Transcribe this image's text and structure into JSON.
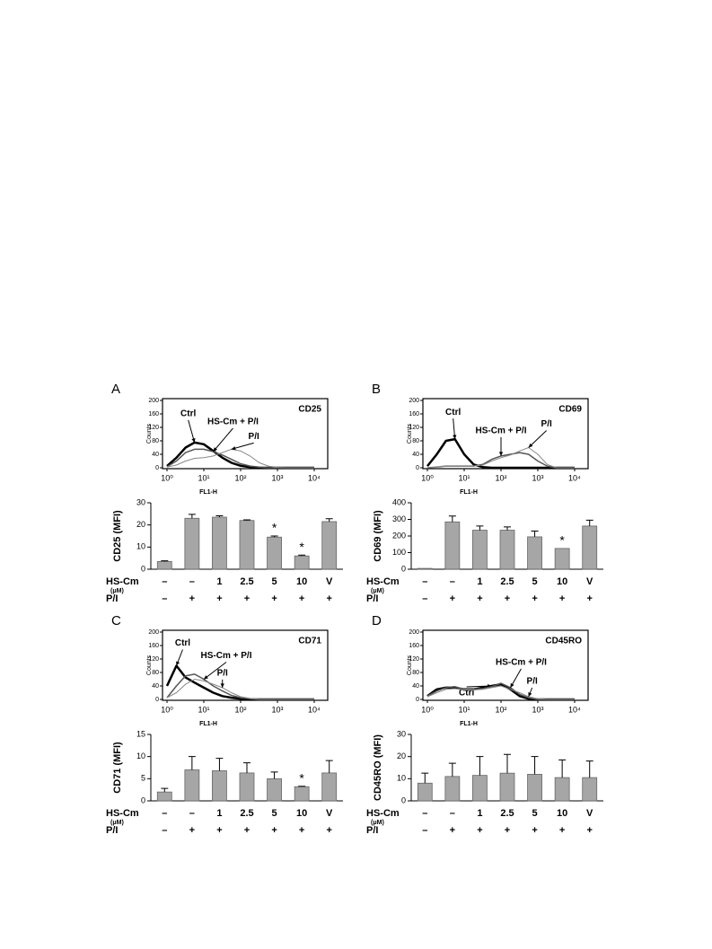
{
  "chart_data": [
    {
      "type": "line",
      "panel": "A",
      "marker": "CD25",
      "xlabel": "FL1-H",
      "ylabel": "Counts",
      "xscale": "log",
      "xlim": [
        1,
        10000
      ],
      "xticks": [
        {
          "value": 1,
          "label": "10⁰"
        },
        {
          "value": 10,
          "label": "10¹"
        },
        {
          "value": 100,
          "label": "10²"
        },
        {
          "value": 1000,
          "label": "10³"
        },
        {
          "value": 10000,
          "label": "10⁴"
        }
      ],
      "ylim": [
        0,
        200
      ],
      "yticks": [
        0,
        40,
        80,
        120,
        160,
        200
      ],
      "x": [
        1,
        1.8,
        3.2,
        5.6,
        10,
        18,
        32,
        56,
        100,
        180,
        320,
        560,
        1000,
        1800,
        3200,
        5600,
        10000
      ],
      "series": [
        {
          "name": "Ctrl",
          "color": "#000000",
          "values": [
            5,
            30,
            60,
            75,
            70,
            50,
            30,
            15,
            6,
            2,
            0,
            0,
            0,
            0,
            0,
            0,
            0
          ]
        },
        {
          "name": "HS-Cm + P/I",
          "color": "#555555",
          "values": [
            3,
            20,
            45,
            55,
            55,
            48,
            38,
            25,
            12,
            5,
            2,
            0,
            0,
            0,
            0,
            0,
            0
          ]
        },
        {
          "name": "P/I",
          "color": "#888888",
          "values": [
            2,
            8,
            20,
            28,
            30,
            35,
            45,
            55,
            50,
            35,
            15,
            5,
            1,
            0,
            0,
            0,
            0
          ]
        }
      ]
    },
    {
      "type": "bar",
      "ylabel": "CD25 (MFI)",
      "ylim": [
        0,
        30
      ],
      "yticks": [
        0,
        10,
        20,
        30
      ],
      "color": "#a6a6a6",
      "values": [
        3.5,
        23,
        23.5,
        22,
        14.5,
        6,
        21.5
      ],
      "errors": [
        0.3,
        1.8,
        0.6,
        0.3,
        0.5,
        0.4,
        1.3
      ],
      "stars": [
        null,
        null,
        null,
        null,
        "*",
        "*",
        null
      ],
      "rows": [
        {
          "label": "HS-Cm",
          "sublabel": "(μM)",
          "cells": [
            "–",
            "–",
            "1",
            "2.5",
            "5",
            "10",
            "V"
          ]
        },
        {
          "label": "P/I",
          "cells": [
            "–",
            "+",
            "+",
            "+",
            "+",
            "+",
            "+"
          ]
        }
      ]
    },
    {
      "type": "line",
      "panel": "B",
      "marker": "CD69",
      "xlabel": "FL1-H",
      "ylabel": "Counts",
      "xscale": "log",
      "xlim": [
        1,
        10000
      ],
      "xticks": [
        {
          "value": 1,
          "label": "10⁰"
        },
        {
          "value": 10,
          "label": "10¹"
        },
        {
          "value": 100,
          "label": "10²"
        },
        {
          "value": 1000,
          "label": "10³"
        },
        {
          "value": 10000,
          "label": "10⁴"
        }
      ],
      "ylim": [
        0,
        200
      ],
      "yticks": [
        0,
        40,
        80,
        120,
        160,
        200
      ],
      "x": [
        1,
        1.8,
        3.2,
        5.6,
        10,
        18,
        32,
        56,
        100,
        180,
        320,
        560,
        1000,
        1800,
        3200,
        5600,
        10000
      ],
      "series": [
        {
          "name": "Ctrl",
          "color": "#000000",
          "values": [
            5,
            40,
            80,
            85,
            40,
            10,
            2,
            0,
            0,
            0,
            0,
            0,
            0,
            0,
            0,
            0,
            0
          ]
        },
        {
          "name": "HS-Cm + P/I",
          "color": "#555555",
          "values": [
            0,
            2,
            5,
            5,
            5,
            5,
            10,
            25,
            35,
            40,
            45,
            40,
            20,
            5,
            0,
            0,
            0
          ]
        },
        {
          "name": "P/I",
          "color": "#888888",
          "values": [
            0,
            2,
            5,
            5,
            5,
            5,
            8,
            20,
            30,
            38,
            50,
            60,
            40,
            10,
            0,
            0,
            0
          ]
        }
      ]
    },
    {
      "type": "bar",
      "ylabel": "CD69 (MFI)",
      "ylim": [
        0,
        400
      ],
      "yticks": [
        0,
        100,
        200,
        300,
        400
      ],
      "color": "#a6a6a6",
      "values": [
        5,
        285,
        235,
        235,
        195,
        125,
        260
      ],
      "errors": [
        0,
        35,
        25,
        20,
        35,
        0,
        35
      ],
      "stars": [
        null,
        null,
        null,
        null,
        null,
        "*",
        null
      ],
      "rows": [
        {
          "label": "HS-Cm",
          "sublabel": "(μM)",
          "cells": [
            "–",
            "–",
            "1",
            "2.5",
            "5",
            "10",
            "V"
          ]
        },
        {
          "label": "P/I",
          "cells": [
            "–",
            "+",
            "+",
            "+",
            "+",
            "+",
            "+"
          ]
        }
      ]
    },
    {
      "type": "line",
      "panel": "C",
      "marker": "CD71",
      "xlabel": "FL1-H",
      "ylabel": "Counts",
      "xscale": "log",
      "xlim": [
        1,
        10000
      ],
      "xticks": [
        {
          "value": 1,
          "label": "10⁰"
        },
        {
          "value": 10,
          "label": "10¹"
        },
        {
          "value": 100,
          "label": "10²"
        },
        {
          "value": 1000,
          "label": "10³"
        },
        {
          "value": 10000,
          "label": "10⁴"
        }
      ],
      "ylim": [
        0,
        200
      ],
      "yticks": [
        0,
        40,
        80,
        120,
        160,
        200
      ],
      "x": [
        1,
        1.8,
        3.2,
        5.6,
        10,
        18,
        32,
        56,
        100,
        180,
        320,
        560,
        1000,
        1800,
        3200,
        5600,
        10000
      ],
      "series": [
        {
          "name": "Ctrl",
          "color": "#000000",
          "values": [
            40,
            100,
            65,
            50,
            35,
            20,
            10,
            5,
            2,
            0,
            0,
            0,
            0,
            0,
            0,
            0,
            0
          ]
        },
        {
          "name": "HS-Cm + P/I",
          "color": "#555555",
          "values": [
            5,
            40,
            70,
            75,
            60,
            40,
            25,
            12,
            5,
            2,
            0,
            0,
            0,
            0,
            0,
            0,
            0
          ]
        },
        {
          "name": "P/I",
          "color": "#888888",
          "values": [
            5,
            20,
            45,
            60,
            55,
            45,
            35,
            20,
            8,
            3,
            0,
            0,
            0,
            0,
            0,
            0,
            0
          ]
        }
      ]
    },
    {
      "type": "bar",
      "ylabel": "CD71 (MFI)",
      "ylim": [
        0,
        15
      ],
      "yticks": [
        0,
        5,
        10,
        15
      ],
      "color": "#a6a6a6",
      "values": [
        2,
        7,
        6.8,
        6.3,
        5,
        3.2,
        6.3
      ],
      "errors": [
        0.8,
        3,
        2.8,
        2.3,
        1.5,
        0.1,
        2.8
      ],
      "stars": [
        null,
        null,
        null,
        null,
        null,
        "*",
        null
      ],
      "rows": [
        {
          "label": "HS-Cm",
          "sublabel": "(μM)",
          "cells": [
            "–",
            "–",
            "1",
            "2.5",
            "5",
            "10",
            "V"
          ]
        },
        {
          "label": "P/I",
          "cells": [
            "–",
            "+",
            "+",
            "+",
            "+",
            "+",
            "+"
          ]
        }
      ]
    },
    {
      "type": "line",
      "panel": "D",
      "marker": "CD45RO",
      "xlabel": "FL1-H",
      "ylabel": "Counts",
      "xscale": "log",
      "xlim": [
        1,
        10000
      ],
      "xticks": [
        {
          "value": 1,
          "label": "10⁰"
        },
        {
          "value": 10,
          "label": "10¹"
        },
        {
          "value": 100,
          "label": "10²"
        },
        {
          "value": 1000,
          "label": "10³"
        },
        {
          "value": 10000,
          "label": "10⁴"
        }
      ],
      "ylim": [
        0,
        200
      ],
      "yticks": [
        0,
        40,
        80,
        120,
        160,
        200
      ],
      "x": [
        1,
        1.8,
        3.2,
        5.6,
        10,
        18,
        32,
        56,
        100,
        180,
        320,
        560,
        1000,
        1800,
        3200,
        5600,
        10000
      ],
      "series": [
        {
          "name": "Ctrl",
          "color": "#000000",
          "values": [
            10,
            30,
            35,
            35,
            30,
            30,
            35,
            40,
            45,
            30,
            10,
            2,
            0,
            0,
            0,
            0,
            0
          ]
        },
        {
          "name": "HS-Cm + P/I",
          "color": "#555555",
          "values": [
            10,
            25,
            35,
            38,
            30,
            30,
            32,
            38,
            48,
            35,
            15,
            5,
            0,
            0,
            0,
            0,
            0
          ]
        },
        {
          "name": "P/I",
          "color": "#888888",
          "values": [
            8,
            20,
            30,
            32,
            28,
            28,
            30,
            35,
            40,
            30,
            20,
            8,
            2,
            0,
            0,
            0,
            0
          ]
        }
      ]
    },
    {
      "type": "bar",
      "ylabel": "CD45RO (MFI)",
      "ylim": [
        0,
        30
      ],
      "yticks": [
        0,
        10,
        20,
        30
      ],
      "color": "#a6a6a6",
      "values": [
        8,
        11,
        11.5,
        12.5,
        12,
        10.5,
        10.5
      ],
      "errors": [
        4.5,
        6,
        8.5,
        8.5,
        8,
        8,
        7.5
      ],
      "stars": [
        null,
        null,
        null,
        null,
        null,
        null,
        null
      ],
      "rows": [
        {
          "label": "HS-Cm",
          "sublabel": "(μM)",
          "cells": [
            "–",
            "–",
            "1",
            "2.5",
            "5",
            "10",
            "V"
          ]
        },
        {
          "label": "P/I",
          "cells": [
            "–",
            "+",
            "+",
            "+",
            "+",
            "+",
            "+"
          ]
        }
      ]
    }
  ]
}
